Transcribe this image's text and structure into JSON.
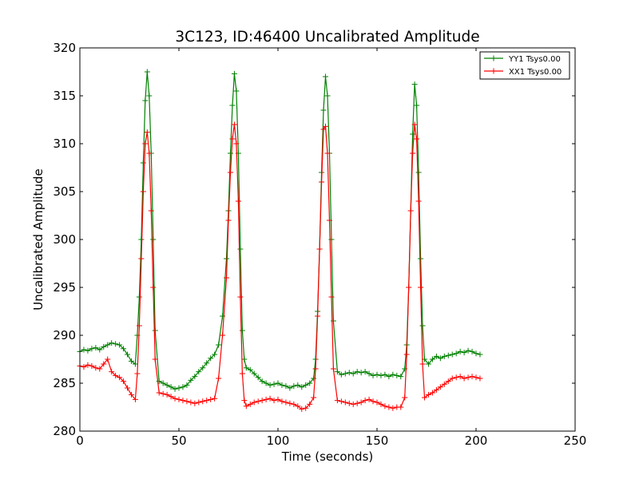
{
  "chart_data": {
    "type": "line",
    "title": "3C123, ID:46400 Uncalibrated Amplitude",
    "xlabel": "Time (seconds)",
    "ylabel": "Uncalibrated Amplitude",
    "xlim": [
      0,
      250
    ],
    "ylim": [
      280,
      320
    ],
    "xticks": [
      "0",
      "50",
      "100",
      "150",
      "200",
      "250"
    ],
    "yticks": [
      "280",
      "285",
      "290",
      "295",
      "300",
      "305",
      "310",
      "315",
      "320"
    ],
    "grid": false,
    "legend_position": "top-right",
    "marker": "+",
    "series": [
      {
        "name": "YY1 Tsys0.00",
        "color": "#008000",
        "x": [
          0,
          2,
          4,
          6,
          8,
          10,
          12,
          14,
          16,
          18,
          20,
          22,
          24,
          26,
          28,
          29,
          30,
          31,
          32,
          33,
          34,
          35,
          36,
          37,
          38,
          40,
          42,
          44,
          46,
          48,
          50,
          52,
          54,
          56,
          58,
          60,
          62,
          64,
          66,
          68,
          70,
          72,
          74,
          75,
          76,
          77,
          78,
          79,
          80,
          81,
          82,
          83,
          84,
          86,
          88,
          90,
          92,
          94,
          96,
          98,
          100,
          102,
          104,
          106,
          108,
          110,
          112,
          114,
          116,
          118,
          119,
          120,
          121,
          122,
          123,
          124,
          125,
          126,
          127,
          128,
          130,
          132,
          134,
          136,
          138,
          140,
          142,
          144,
          146,
          148,
          150,
          152,
          154,
          156,
          158,
          160,
          162,
          164,
          165,
          166,
          167,
          168,
          169,
          170,
          171,
          172,
          173,
          174,
          176,
          178,
          180,
          182,
          184,
          186,
          188,
          190,
          192,
          194,
          196,
          198,
          200,
          202
        ],
        "values": [
          288.3,
          288.5,
          288.4,
          288.6,
          288.7,
          288.5,
          288.8,
          289.0,
          289.2,
          289.1,
          289.0,
          288.6,
          288.0,
          287.3,
          287.0,
          290.0,
          294.0,
          300.0,
          308.0,
          314.5,
          317.5,
          315.0,
          309.0,
          300.0,
          290.5,
          285.2,
          285.0,
          284.8,
          284.6,
          284.4,
          284.5,
          284.6,
          284.8,
          285.3,
          285.7,
          286.2,
          286.6,
          287.1,
          287.6,
          288.0,
          289.0,
          292.0,
          298.0,
          303.0,
          309.0,
          314.0,
          317.3,
          315.5,
          309.0,
          299.0,
          290.5,
          287.5,
          286.6,
          286.4,
          286.0,
          285.6,
          285.2,
          285.0,
          284.8,
          284.9,
          285.0,
          284.8,
          284.7,
          284.5,
          284.7,
          284.8,
          284.6,
          284.8,
          285.0,
          285.5,
          287.5,
          292.5,
          299.0,
          307.0,
          313.5,
          317.0,
          315.0,
          309.0,
          300.0,
          291.5,
          286.2,
          285.9,
          286.0,
          286.1,
          286.0,
          286.2,
          286.1,
          286.2,
          286.0,
          285.8,
          285.9,
          285.8,
          285.9,
          285.7,
          285.9,
          285.8,
          285.7,
          286.5,
          289.0,
          295.0,
          303.0,
          311.0,
          316.2,
          314.0,
          307.0,
          298.0,
          291.0,
          287.5,
          287.0,
          287.5,
          287.8,
          287.6,
          287.8,
          287.9,
          288.0,
          288.1,
          288.3,
          288.2,
          288.4,
          288.3,
          288.1,
          288.0
        ]
      },
      {
        "name": "XX1 Tsys0.00",
        "color": "#ff0000",
        "x": [
          0,
          2,
          4,
          6,
          8,
          10,
          12,
          14,
          16,
          18,
          20,
          22,
          24,
          26,
          28,
          29,
          30,
          31,
          32,
          33,
          34,
          35,
          36,
          37,
          38,
          40,
          42,
          44,
          46,
          48,
          50,
          52,
          54,
          56,
          58,
          60,
          62,
          64,
          66,
          68,
          70,
          72,
          74,
          75,
          76,
          77,
          78,
          79,
          80,
          81,
          82,
          83,
          84,
          86,
          88,
          90,
          92,
          94,
          96,
          98,
          100,
          102,
          104,
          106,
          108,
          110,
          112,
          114,
          116,
          118,
          119,
          120,
          121,
          122,
          123,
          124,
          125,
          126,
          127,
          128,
          130,
          132,
          134,
          136,
          138,
          140,
          142,
          144,
          146,
          148,
          150,
          152,
          154,
          156,
          158,
          160,
          162,
          164,
          165,
          166,
          167,
          168,
          169,
          170,
          171,
          172,
          173,
          174,
          176,
          178,
          180,
          182,
          184,
          186,
          188,
          190,
          192,
          194,
          196,
          198,
          200,
          202
        ],
        "values": [
          286.8,
          286.7,
          286.9,
          286.8,
          286.6,
          286.5,
          287.0,
          287.5,
          286.2,
          285.8,
          285.6,
          285.2,
          284.5,
          283.8,
          283.3,
          286.0,
          291.0,
          298.0,
          305.0,
          310.0,
          311.2,
          309.0,
          303.0,
          295.0,
          287.5,
          284.0,
          283.9,
          283.8,
          283.6,
          283.4,
          283.3,
          283.2,
          283.1,
          283.0,
          282.9,
          283.0,
          283.1,
          283.2,
          283.3,
          283.4,
          285.5,
          290.0,
          296.0,
          302.0,
          307.0,
          310.5,
          312.0,
          310.0,
          304.0,
          294.0,
          286.0,
          283.2,
          282.6,
          282.8,
          283.0,
          283.1,
          283.2,
          283.3,
          283.4,
          283.2,
          283.3,
          283.1,
          283.0,
          282.9,
          282.8,
          282.6,
          282.3,
          282.4,
          282.8,
          283.5,
          286.5,
          292.0,
          299.0,
          306.0,
          311.5,
          311.8,
          309.0,
          302.0,
          294.0,
          286.5,
          283.2,
          283.1,
          283.0,
          282.9,
          282.8,
          282.9,
          283.0,
          283.2,
          283.3,
          283.1,
          283.0,
          282.8,
          282.6,
          282.5,
          282.4,
          282.5,
          282.5,
          283.5,
          288.0,
          295.0,
          303.0,
          309.0,
          312.0,
          310.5,
          304.0,
          295.0,
          287.0,
          283.5,
          283.8,
          284.0,
          284.3,
          284.6,
          284.9,
          285.2,
          285.5,
          285.6,
          285.7,
          285.5,
          285.6,
          285.7,
          285.6,
          285.5
        ]
      }
    ]
  }
}
